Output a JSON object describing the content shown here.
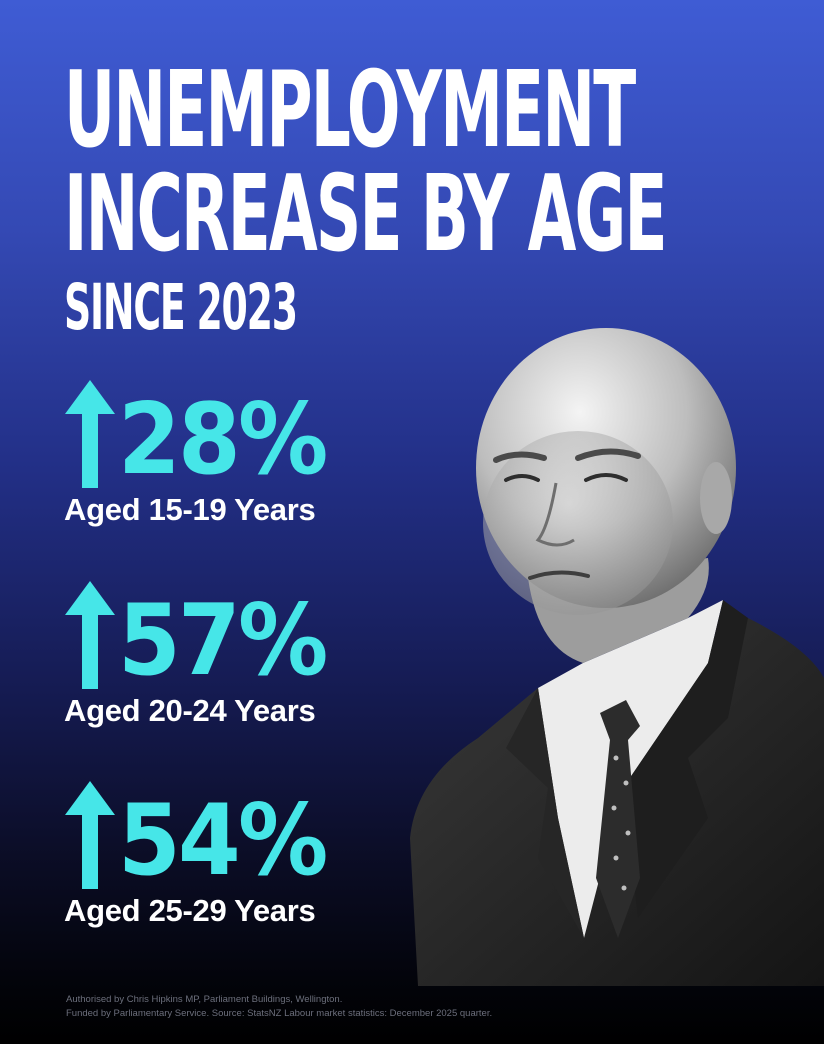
{
  "headline": {
    "line1": "UNEMPLOYMENT",
    "line2": "INCREASE BY AGE",
    "line3": "SINCE 2023"
  },
  "colors": {
    "accent": "#46e6e8",
    "background_top": "#3f5cd4",
    "background_bottom": "#000000",
    "text": "#ffffff"
  },
  "stats": [
    {
      "value": "28%",
      "label": "Aged 15-19 Years",
      "icon": "up-arrow-icon"
    },
    {
      "value": "57%",
      "label": "Aged 20-24 Years",
      "icon": "up-arrow-icon"
    },
    {
      "value": "54%",
      "label": "Aged 25-29 Years",
      "icon": "up-arrow-icon"
    }
  ],
  "footer": {
    "line1": "Authorised by Chris Hipkins MP, Parliament Buildings, Wellington.",
    "line2": "Funded by Parliamentary Service. Source: StatsNZ Labour market statistics: December 2025 quarter."
  }
}
